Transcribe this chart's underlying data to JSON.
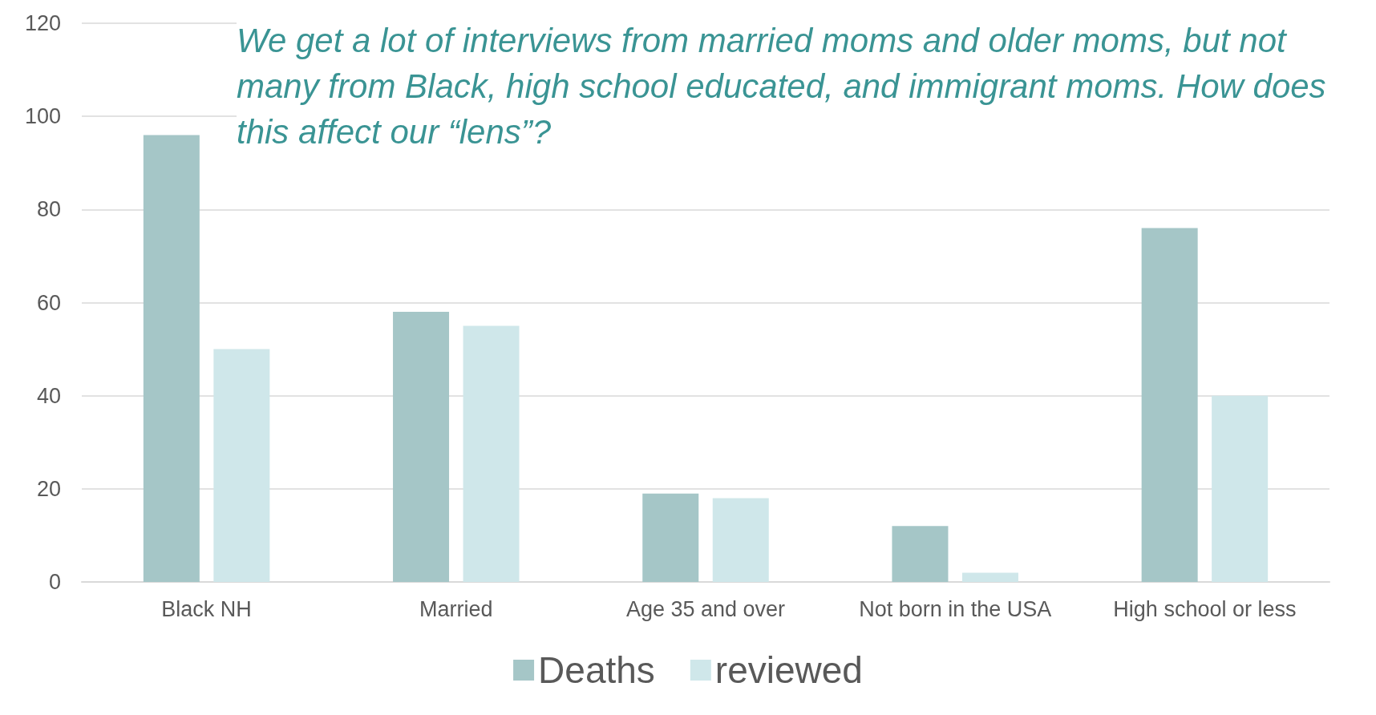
{
  "chart_data": {
    "type": "bar",
    "categories": [
      "Black NH",
      "Married",
      "Age 35 and over",
      "Not born in the USA",
      "High school or less"
    ],
    "series": [
      {
        "name": "Deaths",
        "color": "#a5c6c7",
        "values": [
          96,
          58,
          19,
          12,
          76
        ]
      },
      {
        "name": "reviewed",
        "color": "#cfe7ea",
        "values": [
          50,
          55,
          18,
          2,
          40
        ]
      }
    ],
    "ylim": [
      0,
      120
    ],
    "yticks": [
      0,
      20,
      40,
      60,
      80,
      100,
      120
    ],
    "grid": "y",
    "legend": "bottom",
    "annotations": [
      "We get a lot of interviews from married moms and older moms, but not many from Black, high school educated, and immigrant moms. How does this affect our “lens”?"
    ]
  }
}
